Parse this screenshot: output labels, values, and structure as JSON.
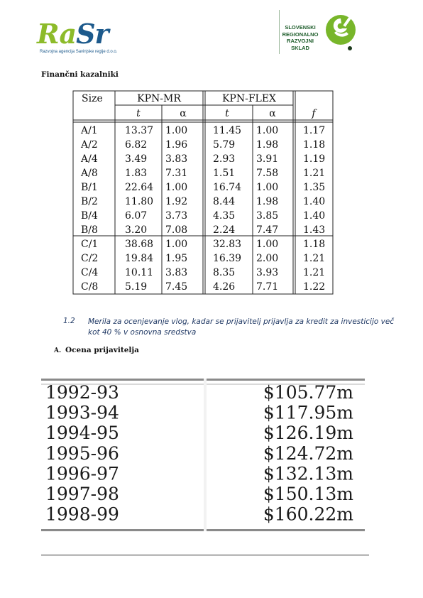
{
  "header": {
    "left_logo": {
      "word_part1": "Ra",
      "word_part2": "Sr",
      "subtitle": "Razvojna agencija Savinjske regije d.o.o."
    },
    "right_logo": {
      "lines": [
        "SLOVENSKI",
        "REGIONALNO",
        "RAZVOJNI",
        "SKLAD"
      ]
    }
  },
  "heading": "Finančni kazalniki",
  "table1": {
    "header_top": [
      "Size",
      "KPN-MR",
      "KPN-FLEX"
    ],
    "header_sub": [
      "t",
      "α",
      "t",
      "α",
      "f"
    ],
    "groups": [
      [
        [
          "A/1",
          "13.37",
          "1.00",
          "11.45",
          "1.00",
          "1.17"
        ],
        [
          "A/2",
          "6.82",
          "1.96",
          "5.79",
          "1.98",
          "1.18"
        ],
        [
          "A/4",
          "3.49",
          "3.83",
          "2.93",
          "3.91",
          "1.19"
        ],
        [
          "A/8",
          "1.83",
          "7.31",
          "1.51",
          "7.58",
          "1.21"
        ],
        [
          "B/1",
          "22.64",
          "1.00",
          "16.74",
          "1.00",
          "1.35"
        ],
        [
          "B/2",
          "11.80",
          "1.92",
          "8.44",
          "1.98",
          "1.40"
        ],
        [
          "B/4",
          "6.07",
          "3.73",
          "4.35",
          "3.85",
          "1.40"
        ],
        [
          "B/8",
          "3.20",
          "7.08",
          "2.24",
          "7.47",
          "1.43"
        ]
      ],
      [
        [
          "C/1",
          "38.68",
          "1.00",
          "32.83",
          "1.00",
          "1.18"
        ],
        [
          "C/2",
          "19.84",
          "1.95",
          "16.39",
          "2.00",
          "1.21"
        ],
        [
          "C/4",
          "10.11",
          "3.83",
          "8.35",
          "3.93",
          "1.21"
        ],
        [
          "C/8",
          "5.19",
          "7.45",
          "4.26",
          "7.71",
          "1.22"
        ]
      ]
    ]
  },
  "section": {
    "number": "1.2",
    "title": "Merila za ocenjevanje vlog, kadar se prijavitelj prijavlja za kredit za investicijo več kot 40 % v osnovna sredstva"
  },
  "subsection": {
    "letter": "A.",
    "title": "Ocena prijavitelja"
  },
  "table2": {
    "rows": [
      [
        "1992-93",
        "$105.77m"
      ],
      [
        "1993-94",
        "$117.95m"
      ],
      [
        "1994-95",
        "$126.19m"
      ],
      [
        "1995-96",
        "$124.72m"
      ],
      [
        "1996-97",
        "$132.13m"
      ],
      [
        "1997-98",
        "$150.13m"
      ],
      [
        "1998-99",
        "$160.22m"
      ]
    ]
  }
}
